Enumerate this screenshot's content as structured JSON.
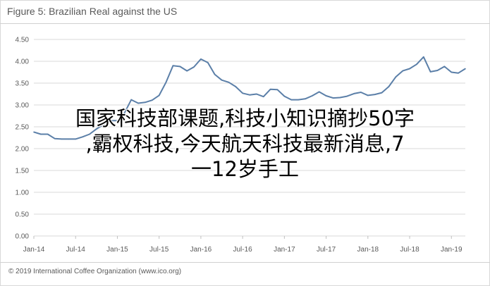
{
  "header": {
    "title": "Figure 5: Brazilian Real against the US"
  },
  "footer": {
    "text": "© 2019 International Coffee Organization (www.ico.org)"
  },
  "overlay": {
    "line1": "国家科技部课题,科技小知识摘抄50字",
    "line2": ",霸权科技,今天航天科技最新消息,7",
    "line3": "一12岁手工"
  },
  "colors": {
    "line": "#5b7fa8",
    "grid": "#d9d9d9",
    "text": "#595959"
  },
  "chart_data": {
    "type": "line",
    "title": "Figure 5: Brazilian Real against the US",
    "xlabel": "",
    "ylabel": "",
    "ylim": [
      0.0,
      4.5
    ],
    "yticks": [
      "0.00",
      "0.50",
      "1.00",
      "1.50",
      "2.00",
      "2.50",
      "3.00",
      "3.50",
      "4.00",
      "4.50"
    ],
    "xticks": [
      "Jan-14",
      "Jul-14",
      "Jan-15",
      "Jul-15",
      "Jan-16",
      "Jul-16",
      "Jan-17",
      "Jul-17",
      "Jan-18",
      "Jul-18",
      "Jan-19"
    ],
    "grid": true,
    "series": [
      {
        "name": "",
        "x": [
          "Jan-14",
          "Feb-14",
          "Mar-14",
          "Apr-14",
          "May-14",
          "Jun-14",
          "Jul-14",
          "Aug-14",
          "Sep-14",
          "Oct-14",
          "Nov-14",
          "Dec-14",
          "Jan-15",
          "Feb-15",
          "Mar-15",
          "Apr-15",
          "May-15",
          "Jun-15",
          "Jul-15",
          "Aug-15",
          "Sep-15",
          "Oct-15",
          "Nov-15",
          "Dec-15",
          "Jan-16",
          "Feb-16",
          "Mar-16",
          "Apr-16",
          "May-16",
          "Jun-16",
          "Jul-16",
          "Aug-16",
          "Sep-16",
          "Oct-16",
          "Nov-16",
          "Dec-16",
          "Jan-17",
          "Feb-17",
          "Mar-17",
          "Apr-17",
          "May-17",
          "Jun-17",
          "Jul-17",
          "Aug-17",
          "Sep-17",
          "Oct-17",
          "Nov-17",
          "Dec-17",
          "Jan-18",
          "Feb-18",
          "Mar-18",
          "Apr-18",
          "May-18",
          "Jun-18",
          "Jul-18",
          "Aug-18",
          "Sep-18",
          "Oct-18",
          "Nov-18",
          "Dec-18",
          "Jan-19",
          "Feb-19",
          "Mar-19"
        ],
        "values": [
          2.38,
          2.33,
          2.33,
          2.23,
          2.22,
          2.22,
          2.22,
          2.27,
          2.33,
          2.45,
          2.55,
          2.64,
          2.64,
          2.81,
          3.12,
          3.04,
          3.06,
          3.11,
          3.22,
          3.52,
          3.9,
          3.88,
          3.78,
          3.87,
          4.05,
          3.97,
          3.7,
          3.57,
          3.52,
          3.42,
          3.27,
          3.23,
          3.25,
          3.19,
          3.36,
          3.35,
          3.2,
          3.12,
          3.12,
          3.14,
          3.21,
          3.3,
          3.21,
          3.16,
          3.17,
          3.2,
          3.26,
          3.29,
          3.22,
          3.24,
          3.28,
          3.42,
          3.64,
          3.78,
          3.83,
          3.93,
          4.1,
          3.76,
          3.79,
          3.88,
          3.75,
          3.73,
          3.83
        ]
      }
    ]
  }
}
